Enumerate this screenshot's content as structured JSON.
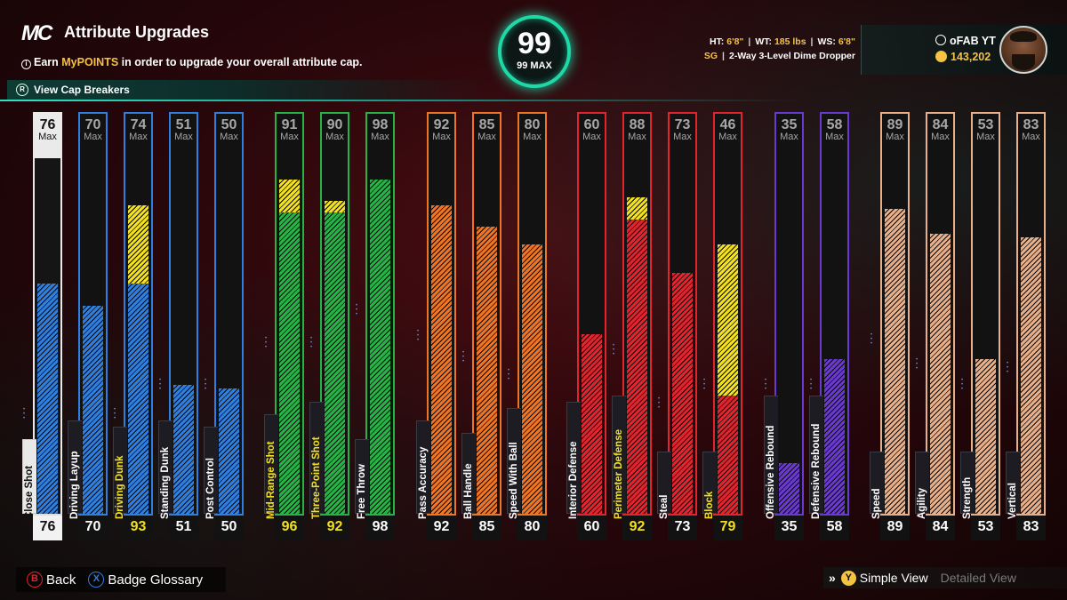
{
  "header": {
    "logo": "MC",
    "title": "Attribute Upgrades",
    "subtitle_prefix": "Earn ",
    "subtitle_highlight": "MyPOINTS",
    "subtitle_suffix": " in order to upgrade your overall attribute cap.",
    "cap_breakers_label": "View Cap Breakers"
  },
  "overall": {
    "value": "99",
    "max_label": "99 MAX"
  },
  "player": {
    "ht_label": "HT:",
    "ht": "6'8\"",
    "wt_label": "WT:",
    "wt": "185 lbs",
    "ws_label": "WS:",
    "ws": "6'8\"",
    "position": "SG",
    "archetype": "2-Way 3-Level Dime Dropper",
    "gamertag": "oFAB YT",
    "vc": "143,202"
  },
  "colors": {
    "finishing": "#2f7fe0",
    "shooting": "#27b446",
    "playmaking": "#ef7424",
    "defense": "#e3242f",
    "rebounding": "#6a3ad0",
    "physicals": "#e8b08a",
    "boost": "#f3e01e"
  },
  "max_label": "Max",
  "attributes": [
    {
      "name": "Close Shot",
      "group": "finishing",
      "max": "76",
      "current": 64,
      "boost": 0,
      "value": "76",
      "value_gold": false,
      "selected": true
    },
    {
      "name": "Driving Layup",
      "group": "finishing",
      "max": "70",
      "current": 58,
      "boost": 0,
      "value": "70",
      "value_gold": false
    },
    {
      "name": "Driving Dunk",
      "group": "finishing",
      "max": "74",
      "current": 64,
      "boost": 22,
      "value": "93",
      "value_gold": true
    },
    {
      "name": "Standing Dunk",
      "group": "finishing",
      "max": "51",
      "current": 36,
      "boost": 0,
      "value": "51",
      "value_gold": false
    },
    {
      "name": "Post Control",
      "group": "finishing",
      "max": "50",
      "current": 35,
      "boost": 0,
      "value": "50",
      "value_gold": false
    },
    {
      "name": "Mid-Range Shot",
      "group": "shooting",
      "max": "91",
      "current": 84,
      "boost": 9,
      "value": "96",
      "value_gold": true
    },
    {
      "name": "Three-Point Shot",
      "group": "shooting",
      "max": "90",
      "current": 84,
      "boost": 3,
      "value": "92",
      "value_gold": true
    },
    {
      "name": "Free Throw",
      "group": "shooting",
      "max": "98",
      "current": 93,
      "boost": 0,
      "value": "98",
      "value_gold": false
    },
    {
      "name": "Pass Accuracy",
      "group": "playmaking",
      "max": "92",
      "current": 86,
      "boost": 0,
      "value": "92",
      "value_gold": false
    },
    {
      "name": "Ball Handle",
      "group": "playmaking",
      "max": "85",
      "current": 80,
      "boost": 0,
      "value": "85",
      "value_gold": false
    },
    {
      "name": "Speed With Ball",
      "group": "playmaking",
      "max": "80",
      "current": 75,
      "boost": 0,
      "value": "80",
      "value_gold": false
    },
    {
      "name": "Interior Defense",
      "group": "defense",
      "max": "60",
      "current": 50,
      "boost": 0,
      "value": "60",
      "value_gold": false
    },
    {
      "name": "Perimeter Defense",
      "group": "defense",
      "max": "88",
      "current": 82,
      "boost": 6,
      "value": "92",
      "value_gold": true
    },
    {
      "name": "Steal",
      "group": "defense",
      "max": "73",
      "current": 67,
      "boost": 0,
      "value": "73",
      "value_gold": false
    },
    {
      "name": "Block",
      "group": "defense",
      "max": "46",
      "current": 33,
      "boost": 42,
      "value": "79",
      "value_gold": true
    },
    {
      "name": "Offensive Rebound",
      "group": "rebounding",
      "max": "35",
      "current": 14,
      "boost": 0,
      "value": "35",
      "value_gold": false
    },
    {
      "name": "Defensive Rebound",
      "group": "rebounding",
      "max": "58",
      "current": 43,
      "boost": 0,
      "value": "58",
      "value_gold": false
    },
    {
      "name": "Speed",
      "group": "physicals",
      "max": "89",
      "current": 85,
      "boost": 0,
      "value": "89",
      "value_gold": false
    },
    {
      "name": "Agility",
      "group": "physicals",
      "max": "84",
      "current": 78,
      "boost": 0,
      "value": "84",
      "value_gold": false
    },
    {
      "name": "Strength",
      "group": "physicals",
      "max": "53",
      "current": 43,
      "boost": 0,
      "value": "53",
      "value_gold": false
    },
    {
      "name": "Vertical",
      "group": "physicals",
      "max": "83",
      "current": 77,
      "boost": 0,
      "value": "83",
      "value_gold": false
    }
  ],
  "footer": {
    "back_label": "Back",
    "glossary_label": "Badge Glossary",
    "simple_view_label": "Simple View",
    "detailed_view_label": "Detailed View"
  }
}
